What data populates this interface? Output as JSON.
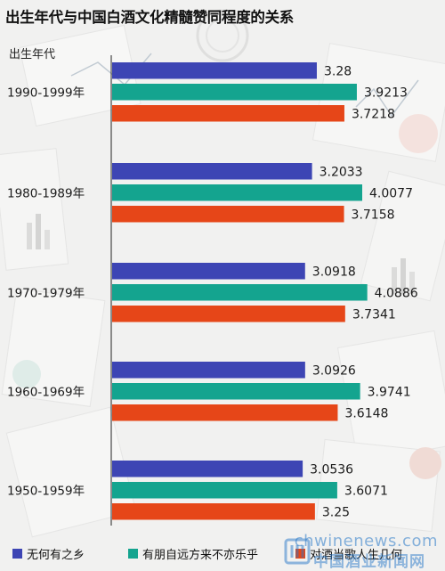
{
  "chart_data": {
    "type": "bar",
    "orientation": "horizontal",
    "title": "出生年代与中国白酒文化精髓赞同程度的关系",
    "category_axis_title": "出生年代",
    "categories": [
      "1990-1999年",
      "1980-1989年",
      "1970-1979年",
      "1960-1969年",
      "1950-1959年"
    ],
    "series": [
      {
        "name": "无何有之乡",
        "color": "#3d45b4",
        "values": [
          3.28,
          3.2033,
          3.0918,
          3.0926,
          3.0536
        ],
        "labels": [
          "3.28",
          "3.2033",
          "3.0918",
          "3.0926",
          "3.0536"
        ]
      },
      {
        "name": "有朋自远方来不亦乐乎",
        "color": "#14a48f",
        "values": [
          3.9213,
          4.0077,
          4.0886,
          3.9741,
          3.6071
        ],
        "labels": [
          "3.9213",
          "4.0077",
          "4.0886",
          "3.9741",
          "3.6071"
        ]
      },
      {
        "name": "对酒当歌人生几何",
        "color": "#e64618",
        "values": [
          3.7218,
          3.7158,
          3.7341,
          3.6148,
          3.25
        ],
        "labels": [
          "3.7218",
          "3.7158",
          "3.7341",
          "3.6148",
          "3.25"
        ]
      }
    ],
    "xlim": [
      0,
      4.35
    ],
    "grid": false,
    "legend_position": "bottom"
  },
  "watermark": {
    "url": "chwinenews.com",
    "name": "中国酒业新闻网"
  }
}
